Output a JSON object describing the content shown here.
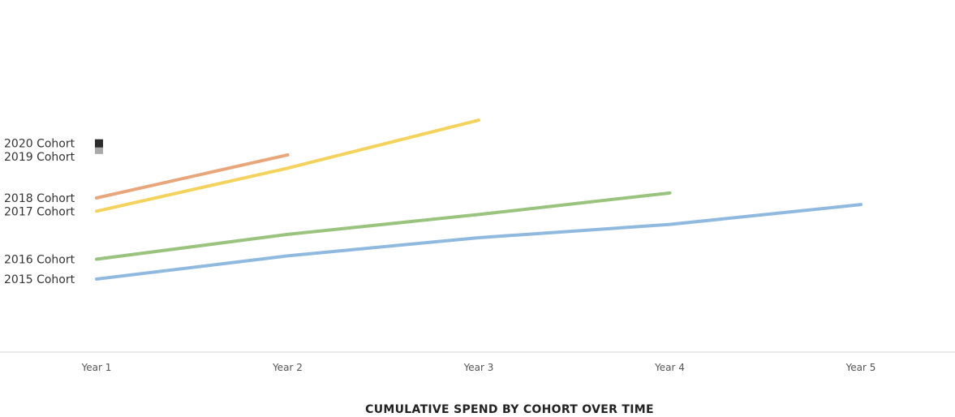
{
  "chart_data": {
    "type": "line",
    "title": "CUMULATIVE SPEND BY COHORT OVER TIME",
    "xlabel": "",
    "ylabel": "",
    "categories": [
      "Year 1",
      "Year 2",
      "Year 3",
      "Year 4",
      "Year 5"
    ],
    "ylim": [
      0,
      100
    ],
    "grid": false,
    "axis": {
      "x_baseline": true,
      "y_axis_visible": false
    },
    "legend": "left, series labels beside the start of each line",
    "series": [
      {
        "name": "2015 Cohort",
        "color": "#8fb9df",
        "values": [
          21,
          35,
          46,
          54,
          66
        ]
      },
      {
        "name": "2016 Cohort",
        "color": "#9ac47e",
        "values": [
          33,
          48,
          60,
          73,
          null
        ]
      },
      {
        "name": "2017 Cohort",
        "color": "#f4d35c",
        "values": [
          62,
          88,
          117,
          null,
          null
        ]
      },
      {
        "name": "2018 Cohort",
        "color": "#e8a67a",
        "values": [
          70,
          96,
          null,
          null,
          null
        ]
      },
      {
        "name": "2019 Cohort",
        "color": "#a9a9a9",
        "values": [
          99,
          null,
          null,
          null,
          null
        ]
      },
      {
        "name": "2020 Cohort",
        "color": "#2b2b2b",
        "values": [
          103,
          null,
          null,
          null,
          null
        ]
      }
    ]
  }
}
